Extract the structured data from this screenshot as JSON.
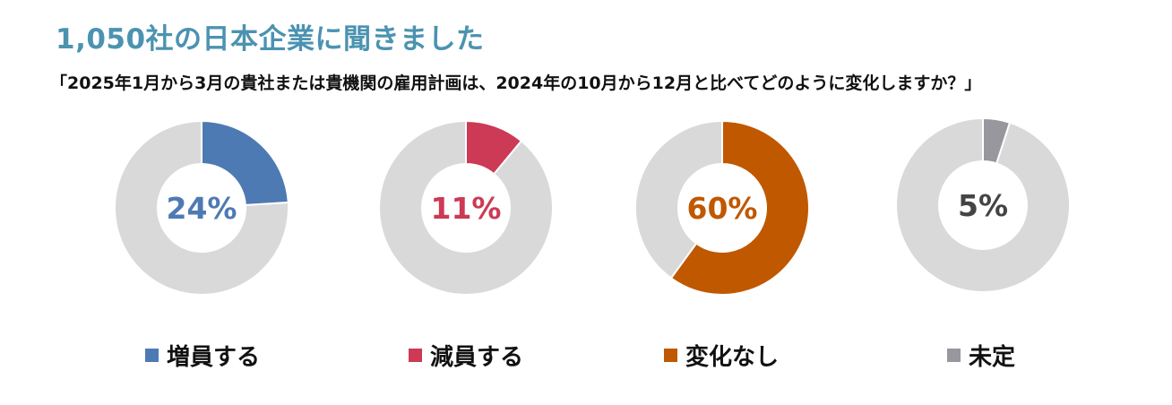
{
  "header": {
    "title": "1,050社の日本企業に聞きました",
    "subtitle": "「2025年1月から3月の貴社または貴機関の雇用計画は、2024年の10月から12月と比べてどのように変化しますか？」"
  },
  "chart_data": [
    {
      "type": "pie",
      "name": "増員する",
      "value": 24,
      "label": "24%",
      "color": "#4e7ab3",
      "remainder_color": "#d9d9d9"
    },
    {
      "type": "pie",
      "name": "減員する",
      "value": 11,
      "label": "11%",
      "color": "#cc3a55",
      "remainder_color": "#d9d9d9"
    },
    {
      "type": "pie",
      "name": "変化なし",
      "value": 60,
      "label": "60%",
      "color": "#c05800",
      "remainder_color": "#d9d9d9"
    },
    {
      "type": "pie",
      "name": "未定",
      "value": 5,
      "label": "5%",
      "color": "#98979d",
      "remainder_color": "#d9d9d9",
      "label_color": "#444444"
    }
  ]
}
